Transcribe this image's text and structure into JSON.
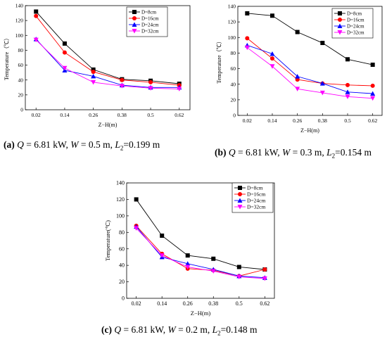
{
  "colors": {
    "D=8cm": "#000000",
    "D=16cm": "#ff0000",
    "D=24cm": "#0000ff",
    "D=32cm": "#ff00ff"
  },
  "chart_data": [
    {
      "type": "line",
      "id": "a",
      "xlabel": "Z−H(m)",
      "ylabel": "Temperature（℃）",
      "x": [
        "0.02",
        "0.14",
        "0.26",
        "0.38",
        "0.5",
        "0.62"
      ],
      "ylim": [
        0,
        140
      ],
      "yticks": [
        "0",
        "20",
        "40",
        "60",
        "80",
        "100",
        "120",
        "140"
      ],
      "legend_position": "top-right",
      "series": [
        {
          "name": "D=8cm",
          "marker": "square",
          "values": [
            132,
            89,
            54,
            41,
            39,
            35
          ]
        },
        {
          "name": "D=16cm",
          "marker": "circle",
          "values": [
            126,
            77,
            51,
            40,
            37,
            33
          ]
        },
        {
          "name": "D=24cm",
          "marker": "triangle-up",
          "values": [
            95,
            53,
            45,
            33,
            30,
            30
          ]
        },
        {
          "name": "D=32cm",
          "marker": "triangle-down",
          "values": [
            94,
            56,
            37,
            32,
            29,
            28
          ]
        }
      ],
      "caption": {
        "label": "(a)",
        "q_var": "Q",
        "q_val": " = 6.81 kW, ",
        "w_var": "W",
        "w_val": " = 0.5 m, ",
        "l_var": "L",
        "l_sub": "2",
        "l_val": "=0.199 m"
      }
    },
    {
      "type": "line",
      "id": "b",
      "xlabel": "Z−H(m)",
      "ylabel": "Temperature（℃）",
      "x": [
        "0.02",
        "0.14",
        "0.26",
        "0.38",
        "0.5",
        "0.62"
      ],
      "ylim": [
        0,
        140
      ],
      "yticks": [
        "0",
        "20",
        "40",
        "60",
        "80",
        "100",
        "120",
        "140"
      ],
      "legend_position": "top-right",
      "series": [
        {
          "name": "D=8cm",
          "marker": "square",
          "values": [
            131,
            128,
            107,
            93,
            72,
            65
          ]
        },
        {
          "name": "D=16cm",
          "marker": "circle",
          "values": [
            99,
            73,
            46,
            41,
            39,
            38
          ]
        },
        {
          "name": "D=24cm",
          "marker": "triangle-up",
          "values": [
            90,
            79,
            50,
            41,
            30,
            28
          ]
        },
        {
          "name": "D=32cm",
          "marker": "triangle-down",
          "values": [
            87,
            63,
            34,
            29,
            24,
            22
          ]
        }
      ],
      "caption": {
        "label": "(b)",
        "q_var": "Q",
        "q_val": " = 6.81 kW, ",
        "w_var": "W",
        "w_val": " = 0.3 m, ",
        "l_var": "L",
        "l_sub": "2",
        "l_val": "=0.154 m"
      }
    },
    {
      "type": "line",
      "id": "c",
      "xlabel": "Z−H(m)",
      "ylabel": "Temperature(℃)",
      "x": [
        "0.02",
        "0.14",
        "0.26",
        "0.38",
        "0.5",
        "0.62"
      ],
      "ylim": [
        0,
        140
      ],
      "yticks": [
        "0",
        "20",
        "40",
        "60",
        "80",
        "100",
        "120",
        "140"
      ],
      "legend_position": "top-right",
      "series": [
        {
          "name": "D=8cm",
          "marker": "square",
          "values": [
            120,
            76,
            52,
            48,
            38,
            35
          ]
        },
        {
          "name": "D=16cm",
          "marker": "circle",
          "values": [
            88,
            54,
            36,
            34,
            27,
            35
          ]
        },
        {
          "name": "D=24cm",
          "marker": "triangle-up",
          "values": [
            87,
            50,
            42,
            35,
            27,
            25
          ]
        },
        {
          "name": "D=32cm",
          "marker": "triangle-down",
          "values": [
            85,
            52,
            38,
            33,
            26,
            24
          ]
        }
      ],
      "caption": {
        "label": "(c)",
        "q_var": "Q",
        "q_val": " = 6.81 kW, ",
        "w_var": "W",
        "w_val": " = 0.2 m, ",
        "l_var": "L",
        "l_sub": "2",
        "l_val": "=0.148 m"
      }
    }
  ]
}
